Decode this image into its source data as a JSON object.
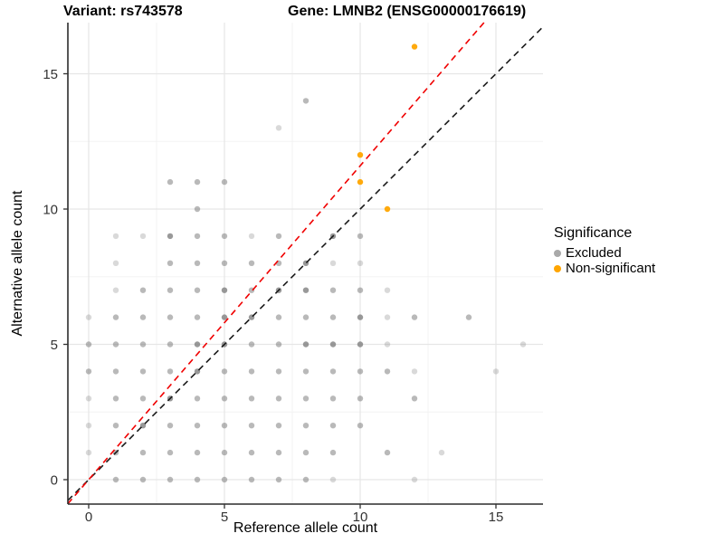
{
  "chart_data": {
    "type": "scatter",
    "titles": {
      "left": "Variant: rs743578",
      "right": "Gene: LMNB2 (ENSG00000176619)"
    },
    "axes": {
      "x": {
        "label": "Reference allele count",
        "ticks": [
          0,
          5,
          10,
          15
        ],
        "range": [
          -0.77,
          16.73
        ]
      },
      "y": {
        "label": "Alternative allele count",
        "ticks": [
          0,
          5,
          10,
          15
        ],
        "range": [
          -0.9,
          16.89
        ]
      }
    },
    "grid": {
      "major": [
        0,
        5,
        10,
        15
      ],
      "minor": [
        2.5,
        7.5,
        12.5
      ],
      "major_color": "#e6e6e6",
      "minor_color": "#f3f3f3"
    },
    "legend": {
      "title": "Significance",
      "items": [
        {
          "label": "Excluded",
          "color": "#a9a9a9"
        },
        {
          "label": "Non-significant",
          "color": "#ffa500"
        }
      ]
    },
    "lines": [
      {
        "name": "identity",
        "slope": 1.0,
        "intercept": 0,
        "color": "#1a1a1a",
        "dash": "7 5"
      },
      {
        "name": "regression",
        "slope": 1.16,
        "intercept": 0,
        "color": "#f00000",
        "dash": "7 5"
      }
    ],
    "point_style": {
      "excluded_color": "#808080",
      "non_significant_color": "#ffa500",
      "opacity_levels": {
        "1": 0.3,
        "2": 0.55,
        "3": 0.8
      },
      "radius": 3.2
    },
    "points": {
      "excluded": [
        [
          1,
          0,
          2
        ],
        [
          2,
          0,
          2
        ],
        [
          3,
          0,
          2
        ],
        [
          4,
          0,
          2
        ],
        [
          5,
          0,
          2
        ],
        [
          6,
          0,
          2
        ],
        [
          7,
          0,
          2
        ],
        [
          8,
          0,
          2
        ],
        [
          9,
          0,
          1
        ],
        [
          12,
          0,
          1
        ],
        [
          0,
          1,
          1
        ],
        [
          1,
          1,
          2
        ],
        [
          2,
          1,
          2
        ],
        [
          3,
          1,
          2
        ],
        [
          4,
          1,
          2
        ],
        [
          5,
          1,
          2
        ],
        [
          6,
          1,
          2
        ],
        [
          7,
          1,
          2
        ],
        [
          8,
          1,
          2
        ],
        [
          9,
          1,
          2
        ],
        [
          11,
          1,
          2
        ],
        [
          13,
          1,
          1
        ],
        [
          0,
          2,
          1
        ],
        [
          1,
          2,
          2
        ],
        [
          2,
          2,
          3
        ],
        [
          3,
          2,
          2
        ],
        [
          4,
          2,
          2
        ],
        [
          5,
          2,
          2
        ],
        [
          6,
          2,
          2
        ],
        [
          7,
          2,
          2
        ],
        [
          8,
          2,
          2
        ],
        [
          9,
          2,
          2
        ],
        [
          10,
          2,
          2
        ],
        [
          0,
          3,
          1
        ],
        [
          1,
          3,
          2
        ],
        [
          2,
          3,
          2
        ],
        [
          3,
          3,
          3
        ],
        [
          4,
          3,
          2
        ],
        [
          5,
          3,
          2
        ],
        [
          6,
          3,
          2
        ],
        [
          7,
          3,
          2
        ],
        [
          8,
          3,
          2
        ],
        [
          9,
          3,
          2
        ],
        [
          10,
          3,
          2
        ],
        [
          12,
          3,
          2
        ],
        [
          0,
          4,
          2
        ],
        [
          1,
          4,
          2
        ],
        [
          2,
          4,
          2
        ],
        [
          3,
          4,
          2
        ],
        [
          4,
          4,
          3
        ],
        [
          5,
          4,
          2
        ],
        [
          6,
          4,
          2
        ],
        [
          7,
          4,
          2
        ],
        [
          8,
          4,
          2
        ],
        [
          9,
          4,
          2
        ],
        [
          10,
          4,
          2
        ],
        [
          11,
          4,
          2
        ],
        [
          12,
          4,
          1
        ],
        [
          15,
          4,
          1
        ],
        [
          0,
          5,
          2
        ],
        [
          1,
          5,
          2
        ],
        [
          2,
          5,
          2
        ],
        [
          3,
          5,
          2
        ],
        [
          4,
          5,
          3
        ],
        [
          5,
          5,
          3
        ],
        [
          6,
          5,
          2
        ],
        [
          7,
          5,
          2
        ],
        [
          8,
          5,
          3
        ],
        [
          9,
          5,
          3
        ],
        [
          10,
          5,
          3
        ],
        [
          11,
          5,
          1
        ],
        [
          16,
          5,
          1
        ],
        [
          0,
          6,
          1
        ],
        [
          1,
          6,
          2
        ],
        [
          2,
          6,
          2
        ],
        [
          3,
          6,
          2
        ],
        [
          4,
          6,
          2
        ],
        [
          5,
          6,
          3
        ],
        [
          6,
          6,
          3
        ],
        [
          7,
          6,
          2
        ],
        [
          8,
          6,
          2
        ],
        [
          9,
          6,
          2
        ],
        [
          10,
          6,
          3
        ],
        [
          11,
          6,
          1
        ],
        [
          12,
          6,
          2
        ],
        [
          14,
          6,
          2
        ],
        [
          1,
          7,
          1
        ],
        [
          2,
          7,
          2
        ],
        [
          3,
          7,
          2
        ],
        [
          4,
          7,
          2
        ],
        [
          5,
          7,
          3
        ],
        [
          6,
          7,
          2
        ],
        [
          7,
          7,
          3
        ],
        [
          8,
          7,
          3
        ],
        [
          9,
          7,
          2
        ],
        [
          10,
          7,
          2
        ],
        [
          11,
          7,
          1
        ],
        [
          1,
          8,
          1
        ],
        [
          3,
          8,
          2
        ],
        [
          4,
          8,
          2
        ],
        [
          5,
          8,
          2
        ],
        [
          6,
          8,
          2
        ],
        [
          7,
          8,
          2
        ],
        [
          8,
          8,
          3
        ],
        [
          9,
          8,
          1
        ],
        [
          10,
          8,
          1
        ],
        [
          1,
          9,
          1
        ],
        [
          2,
          9,
          1
        ],
        [
          3,
          9,
          3
        ],
        [
          4,
          9,
          2
        ],
        [
          5,
          9,
          2
        ],
        [
          6,
          9,
          1
        ],
        [
          7,
          9,
          2
        ],
        [
          9,
          9,
          3
        ],
        [
          10,
          9,
          2
        ],
        [
          4,
          10,
          2
        ],
        [
          3,
          11,
          2
        ],
        [
          4,
          11,
          2
        ],
        [
          5,
          11,
          2
        ],
        [
          7,
          13,
          1
        ],
        [
          8,
          14,
          2
        ]
      ],
      "non_significant": [
        [
          10,
          11
        ],
        [
          10,
          12
        ],
        [
          11,
          10
        ],
        [
          12,
          16
        ]
      ]
    }
  }
}
